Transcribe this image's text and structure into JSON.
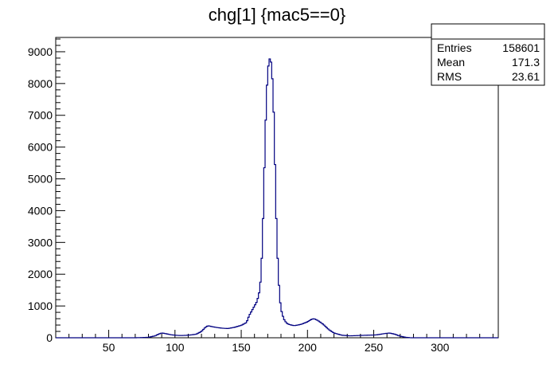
{
  "chart_data": {
    "type": "bar",
    "title": "chg[1] {mac5==0}",
    "xlabel": "",
    "ylabel": "",
    "xlim": [
      10,
      344
    ],
    "ylim": [
      0,
      9450
    ],
    "x_ticks": [
      50,
      100,
      150,
      200,
      250,
      300
    ],
    "y_ticks": [
      0,
      1000,
      2000,
      3000,
      4000,
      5000,
      6000,
      7000,
      8000,
      9000
    ],
    "line_color": "#000080",
    "histogram_points": [
      [
        10,
        0
      ],
      [
        70,
        0
      ],
      [
        80,
        15
      ],
      [
        85,
        60
      ],
      [
        88,
        120
      ],
      [
        90,
        150
      ],
      [
        93,
        130
      ],
      [
        97,
        95
      ],
      [
        100,
        80
      ],
      [
        104,
        70
      ],
      [
        108,
        75
      ],
      [
        112,
        90
      ],
      [
        116,
        110
      ],
      [
        120,
        200
      ],
      [
        123,
        330
      ],
      [
        125,
        380
      ],
      [
        128,
        350
      ],
      [
        132,
        320
      ],
      [
        136,
        300
      ],
      [
        140,
        290
      ],
      [
        145,
        330
      ],
      [
        150,
        390
      ],
      [
        154,
        480
      ],
      [
        156,
        700
      ],
      [
        158,
        850
      ],
      [
        160,
        1000
      ],
      [
        162,
        1150
      ],
      [
        164,
        1500
      ],
      [
        165,
        2000
      ],
      [
        166,
        3000
      ],
      [
        167,
        4500
      ],
      [
        168,
        6200
      ],
      [
        169,
        7500
      ],
      [
        170,
        8400
      ],
      [
        171,
        8700
      ],
      [
        172,
        8850
      ],
      [
        173,
        8500
      ],
      [
        174,
        7800
      ],
      [
        175,
        6400
      ],
      [
        176,
        4500
      ],
      [
        177,
        3000
      ],
      [
        178,
        2000
      ],
      [
        179,
        1300
      ],
      [
        180,
        900
      ],
      [
        182,
        600
      ],
      [
        184,
        470
      ],
      [
        186,
        420
      ],
      [
        190,
        380
      ],
      [
        195,
        420
      ],
      [
        200,
        500
      ],
      [
        203,
        580
      ],
      [
        205,
        600
      ],
      [
        208,
        540
      ],
      [
        212,
        420
      ],
      [
        216,
        260
      ],
      [
        220,
        150
      ],
      [
        226,
        80
      ],
      [
        232,
        60
      ],
      [
        238,
        70
      ],
      [
        245,
        80
      ],
      [
        252,
        90
      ],
      [
        258,
        130
      ],
      [
        262,
        150
      ],
      [
        266,
        110
      ],
      [
        270,
        50
      ],
      [
        274,
        15
      ],
      [
        278,
        0
      ],
      [
        344,
        0
      ]
    ]
  },
  "stats_box": {
    "header": "",
    "rows": [
      {
        "label": "Entries",
        "value": "158601"
      },
      {
        "label": "Mean",
        "value": "171.3"
      },
      {
        "label": "RMS",
        "value": "23.61"
      }
    ]
  }
}
